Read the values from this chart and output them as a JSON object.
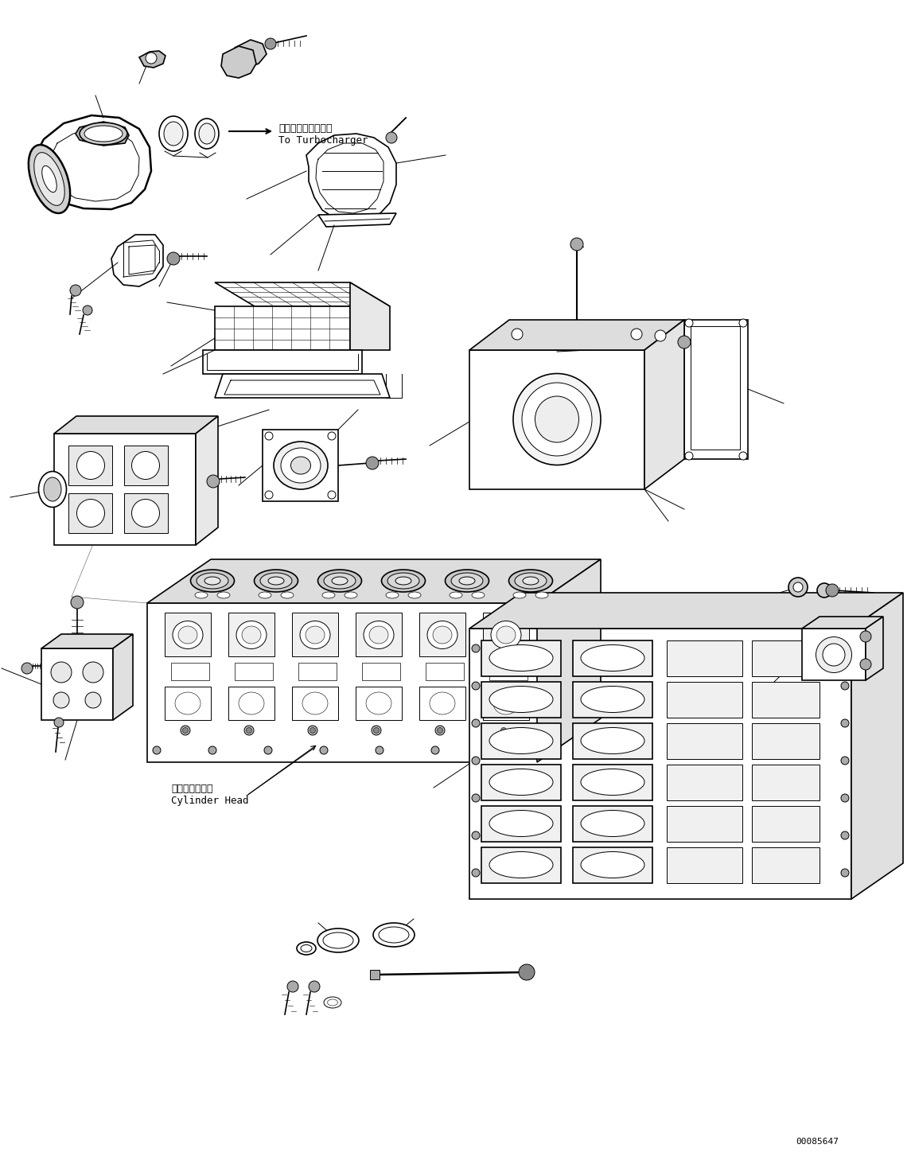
{
  "bg_color": "#ffffff",
  "line_color": "#000000",
  "fig_width": 11.45,
  "fig_height": 14.58,
  "dpi": 100,
  "label_turbo_ja": "ターボチャージャへ",
  "label_turbo_en": "To Turbocharger",
  "label_cylinder_ja": "シリンダヘッド",
  "label_cylinder_en": "Cylinder Head",
  "part_number": "00085647",
  "font_size_label": 9,
  "font_size_partno": 8,
  "white": "#ffffff",
  "gray_light": "#e8e8e8",
  "gray_mid": "#cccccc",
  "gray_dark": "#888888"
}
